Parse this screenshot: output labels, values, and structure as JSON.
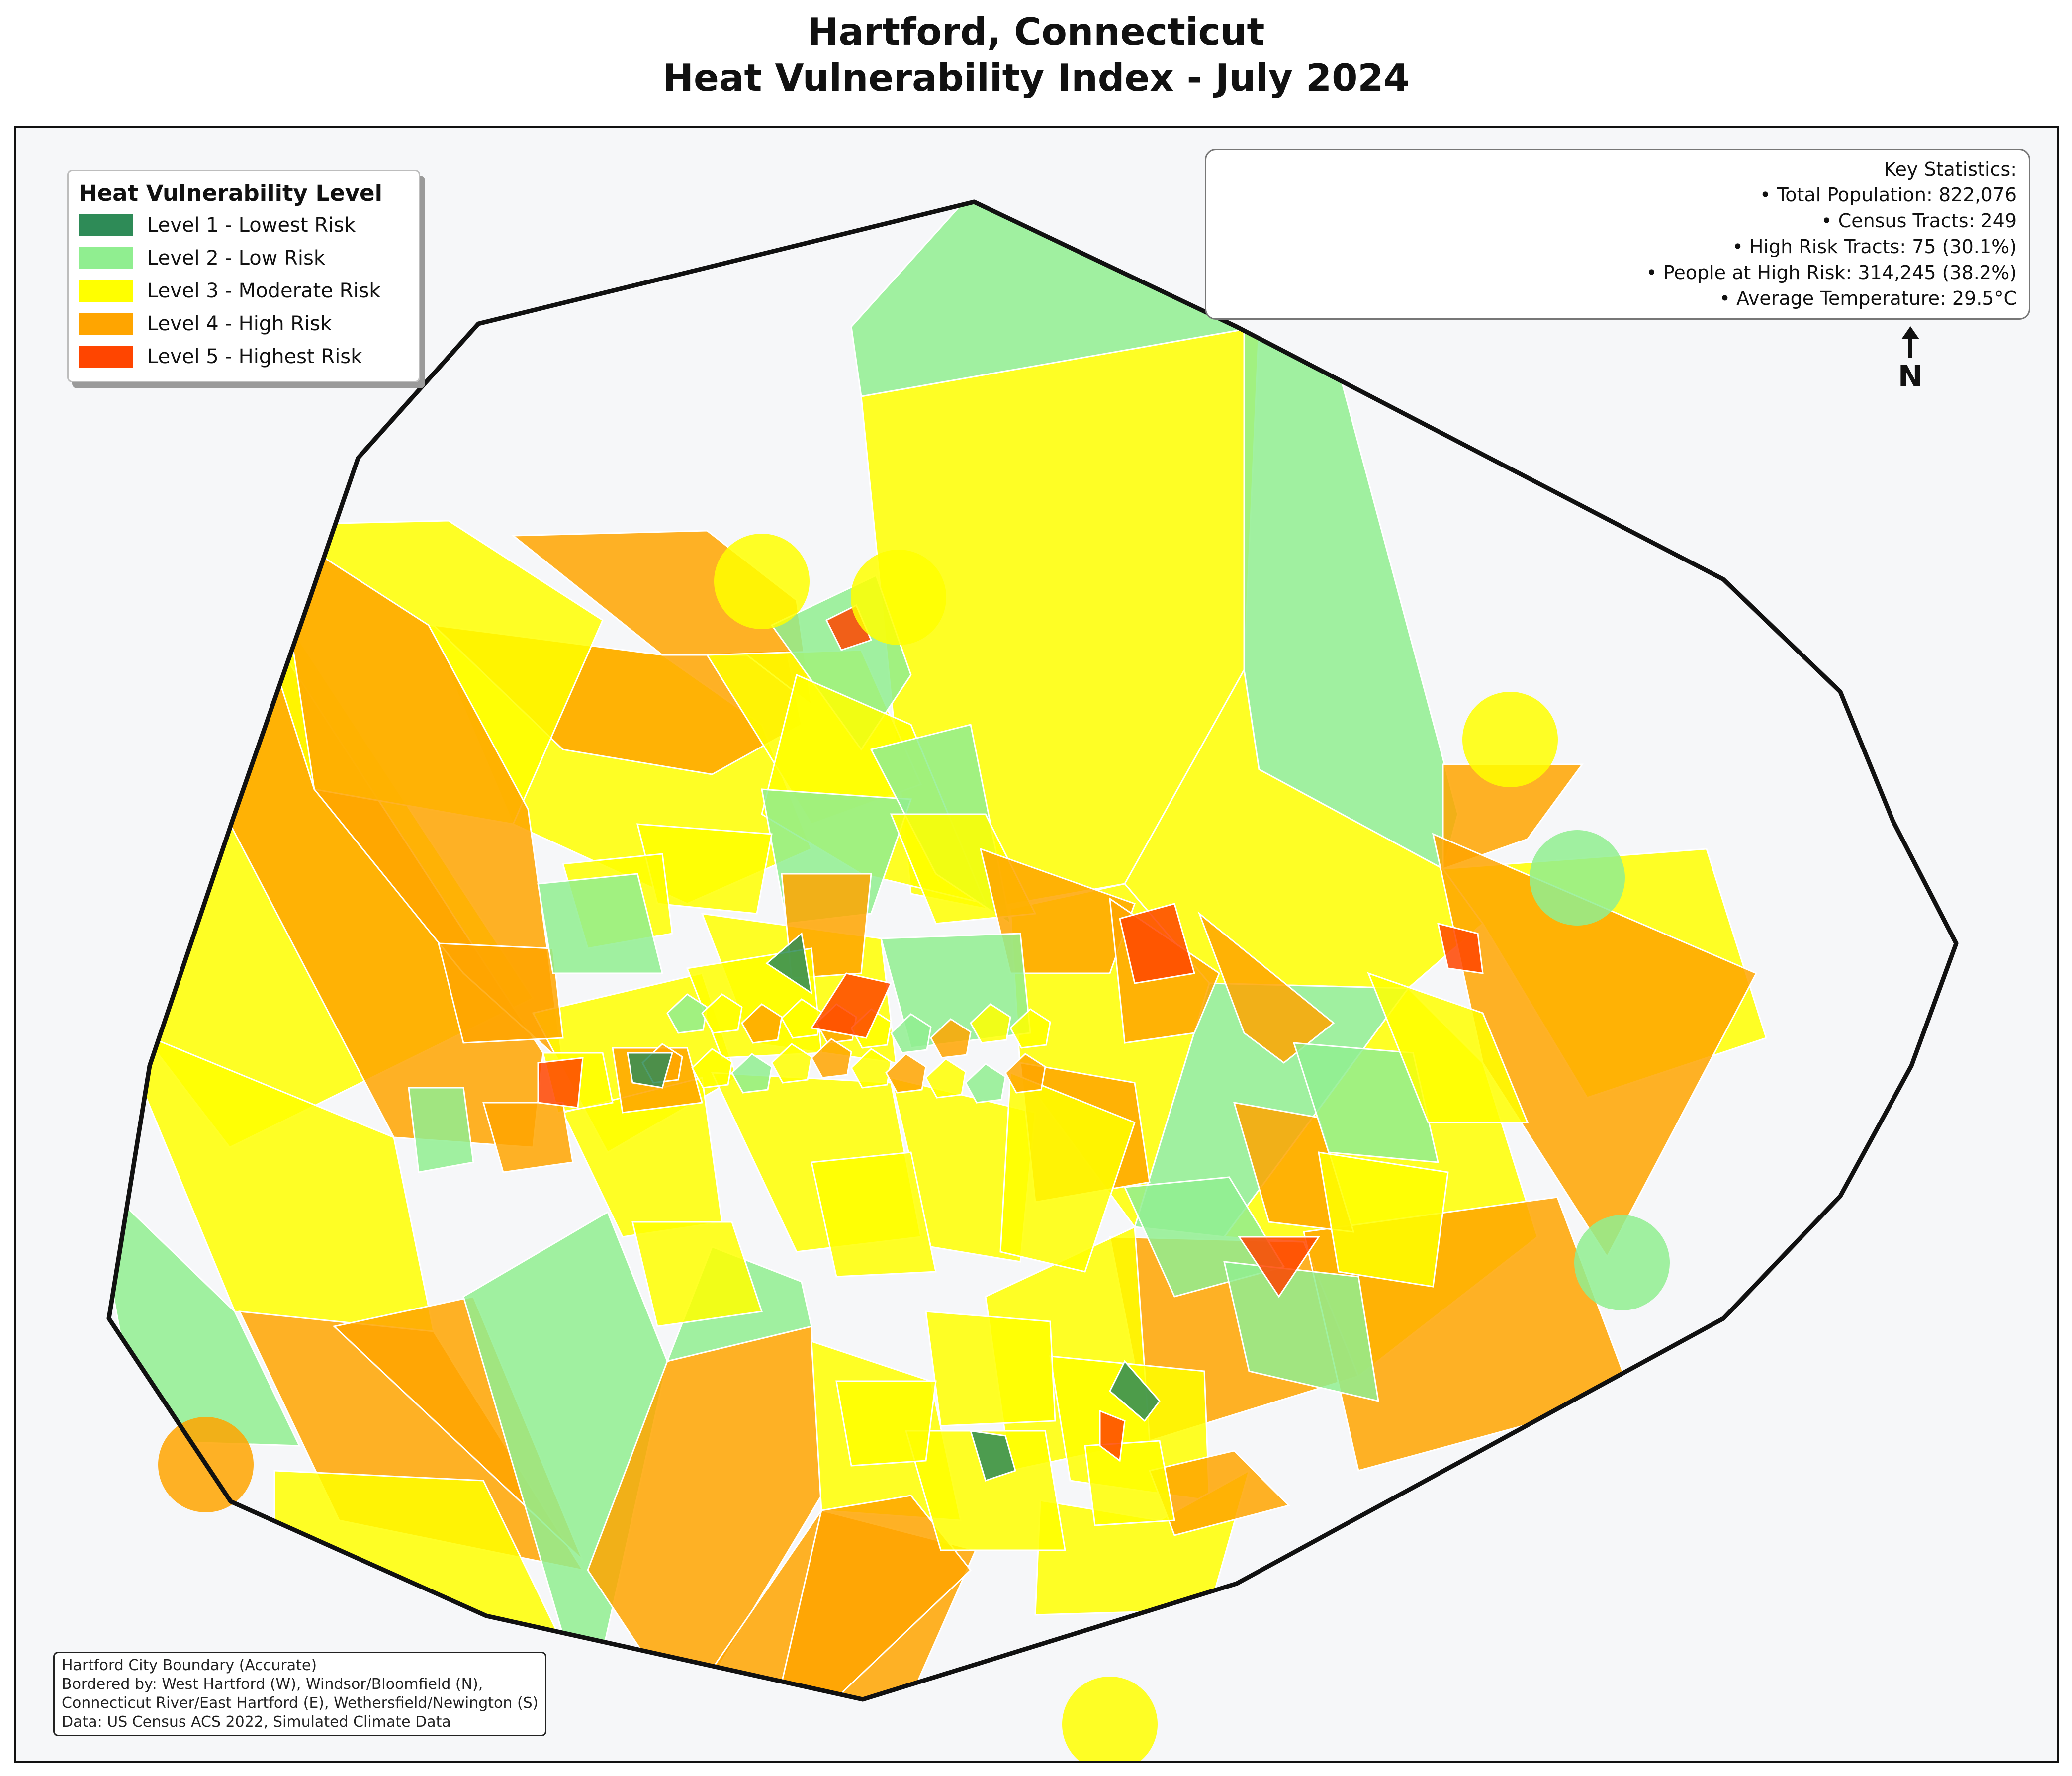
{
  "title": {
    "line1": "Hartford, Connecticut",
    "line2": "Heat Vulnerability Index - July 2024"
  },
  "legend": {
    "title": "Heat Vulnerability Level",
    "items": [
      {
        "label": "Level 1 - Lowest Risk",
        "color": "#2e8b57"
      },
      {
        "label": "Level 2 - Low Risk",
        "color": "#90ee90"
      },
      {
        "label": "Level 3 - Moderate Risk",
        "color": "#ffff00"
      },
      {
        "label": "Level 4 - High Risk",
        "color": "#ffa500"
      },
      {
        "label": "Level 5 - Highest Risk",
        "color": "#ff4500"
      }
    ]
  },
  "stats": {
    "heading": "Key Statistics:",
    "lines": [
      "• Total Population: 822,076",
      "• Census Tracts: 249",
      "• High Risk Tracts: 75 (30.1%)",
      "• People at High Risk: 314,245 (38.2%)",
      "• Average Temperature: 29.5°C"
    ]
  },
  "north": {
    "label": "N"
  },
  "footer": {
    "lines": [
      "Hartford City Boundary (Accurate)",
      "Bordered by: West Hartford (W), Windsor/Bloomfield (N),",
      "Connecticut River/East Hartford (E), Wethersfield/Newington (S)",
      "Data: US Census ACS 2022, Simulated Climate Data"
    ]
  },
  "map": {
    "boundary_color": "#111111",
    "tract_edge_color": "#ffffff",
    "fill_opacity": 0.85
  }
}
